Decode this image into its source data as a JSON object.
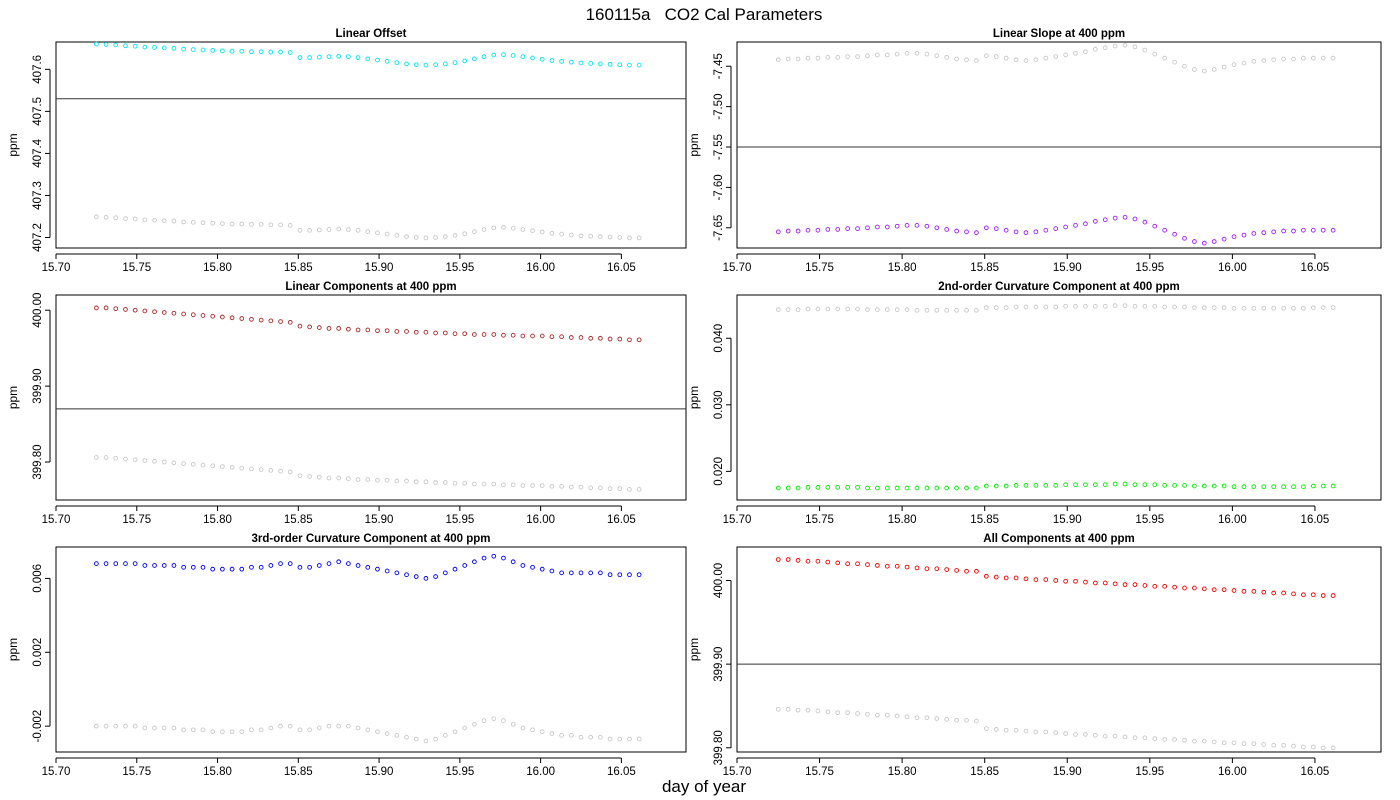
{
  "figure": {
    "title": "160115a   CO2 Cal Parameters",
    "xlabel": "day of year"
  },
  "chart_data": [
    {
      "type": "scatter",
      "title": "Linear Offset",
      "ylabel": "ppm",
      "xlim": [
        15.7,
        16.09
      ],
      "ylim": [
        407.175,
        407.665
      ],
      "xticks": [
        "15.70",
        "15.75",
        "15.80",
        "15.85",
        "15.90",
        "15.95",
        "16.00",
        "16.05"
      ],
      "yticks": [
        "407.2",
        "407.3",
        "407.4",
        "407.5",
        "407.6"
      ],
      "hline": 407.53,
      "x_start": 15.725,
      "x_step": 0.006,
      "series": [
        {
          "color": "#00e5ee",
          "values": [
            407.66,
            407.659,
            407.658,
            407.656,
            407.655,
            407.653,
            407.652,
            407.651,
            407.65,
            407.648,
            407.647,
            407.646,
            407.645,
            407.644,
            407.643,
            407.643,
            407.642,
            407.642,
            407.641,
            407.641,
            407.64,
            407.628,
            407.628,
            407.629,
            407.63,
            407.631,
            407.63,
            407.628,
            407.625,
            407.622,
            407.619,
            407.616,
            407.613,
            407.611,
            407.61,
            407.611,
            407.613,
            407.616,
            407.62,
            407.625,
            407.63,
            407.634,
            407.635,
            407.633,
            407.63,
            407.627,
            407.624,
            407.621,
            407.619,
            407.617,
            407.615,
            407.614,
            407.613,
            407.612,
            407.611,
            407.61,
            407.61
          ]
        },
        {
          "color": "#c8c8c8",
          "values": [
            407.249,
            407.248,
            407.247,
            407.245,
            407.244,
            407.242,
            407.241,
            407.24,
            407.239,
            407.237,
            407.236,
            407.235,
            407.234,
            407.233,
            407.232,
            407.232,
            407.231,
            407.231,
            407.23,
            407.23,
            407.229,
            407.217,
            407.217,
            407.218,
            407.219,
            407.22,
            407.219,
            407.217,
            407.214,
            407.211,
            407.208,
            407.205,
            407.202,
            407.2,
            407.199,
            407.2,
            407.202,
            407.205,
            407.209,
            407.214,
            407.219,
            407.223,
            407.224,
            407.222,
            407.219,
            407.216,
            407.213,
            407.21,
            407.208,
            407.206,
            407.204,
            407.203,
            407.202,
            407.201,
            407.2,
            407.199,
            407.199
          ]
        }
      ]
    },
    {
      "type": "scatter",
      "title": "Linear Slope at 400 ppm",
      "ylabel": "ppm",
      "xlim": [
        15.7,
        16.09
      ],
      "ylim": [
        -7.675,
        -7.42
      ],
      "xticks": [
        "15.70",
        "15.75",
        "15.80",
        "15.85",
        "15.90",
        "15.95",
        "16.00",
        "16.05"
      ],
      "yticks": [
        "-7.65",
        "-7.60",
        "-7.55",
        "-7.50",
        "-7.45"
      ],
      "hline": -7.55,
      "x_start": 15.725,
      "x_step": 0.006,
      "series": [
        {
          "color": "#a020f0",
          "values": [
            -7.655,
            -7.654,
            -7.654,
            -7.653,
            -7.653,
            -7.652,
            -7.652,
            -7.651,
            -7.651,
            -7.65,
            -7.649,
            -7.649,
            -7.648,
            -7.647,
            -7.647,
            -7.648,
            -7.65,
            -7.652,
            -7.654,
            -7.655,
            -7.656,
            -7.65,
            -7.651,
            -7.653,
            -7.655,
            -7.656,
            -7.655,
            -7.653,
            -7.651,
            -7.649,
            -7.647,
            -7.645,
            -7.642,
            -7.64,
            -7.638,
            -7.637,
            -7.639,
            -7.643,
            -7.648,
            -7.653,
            -7.658,
            -7.663,
            -7.667,
            -7.669,
            -7.667,
            -7.664,
            -7.661,
            -7.659,
            -7.657,
            -7.656,
            -7.655,
            -7.654,
            -7.654,
            -7.653,
            -7.653,
            -7.653,
            -7.653
          ]
        },
        {
          "color": "#c8c8c8",
          "values": [
            -7.442,
            -7.441,
            -7.441,
            -7.44,
            -7.44,
            -7.439,
            -7.439,
            -7.438,
            -7.438,
            -7.437,
            -7.436,
            -7.436,
            -7.435,
            -7.434,
            -7.434,
            -7.435,
            -7.437,
            -7.439,
            -7.441,
            -7.442,
            -7.443,
            -7.437,
            -7.438,
            -7.44,
            -7.442,
            -7.443,
            -7.442,
            -7.44,
            -7.438,
            -7.436,
            -7.434,
            -7.432,
            -7.429,
            -7.427,
            -7.425,
            -7.424,
            -7.426,
            -7.43,
            -7.435,
            -7.44,
            -7.445,
            -7.45,
            -7.454,
            -7.456,
            -7.454,
            -7.451,
            -7.448,
            -7.446,
            -7.444,
            -7.443,
            -7.442,
            -7.441,
            -7.441,
            -7.44,
            -7.44,
            -7.44,
            -7.44
          ]
        }
      ]
    },
    {
      "type": "scatter",
      "title": "Linear Components at 400 ppm",
      "ylabel": "ppm",
      "xlim": [
        15.7,
        16.09
      ],
      "ylim": [
        399.75,
        400.02
      ],
      "xticks": [
        "15.70",
        "15.75",
        "15.80",
        "15.85",
        "15.90",
        "15.95",
        "16.00",
        "16.05"
      ],
      "yticks": [
        "399.80",
        "399.90",
        "400.00"
      ],
      "hline": 399.87,
      "x_start": 15.725,
      "x_step": 0.006,
      "series": [
        {
          "color": "#a52a2a",
          "values": [
            400.003,
            400.003,
            400.002,
            400.001,
            400.0,
            399.999,
            399.998,
            399.997,
            399.996,
            399.995,
            399.994,
            399.993,
            399.992,
            399.991,
            399.99,
            399.989,
            399.988,
            399.987,
            399.986,
            399.985,
            399.984,
            399.979,
            399.978,
            399.977,
            399.976,
            399.976,
            399.975,
            399.974,
            399.974,
            399.973,
            399.973,
            399.972,
            399.972,
            399.971,
            399.971,
            399.97,
            399.97,
            399.969,
            399.969,
            399.968,
            399.968,
            399.968,
            399.967,
            399.967,
            399.966,
            399.966,
            399.966,
            399.965,
            399.965,
            399.964,
            399.964,
            399.963,
            399.963,
            399.962,
            399.962,
            399.961,
            399.961
          ]
        },
        {
          "color": "#c8c8c8",
          "values": [
            399.806,
            399.806,
            399.805,
            399.804,
            399.803,
            399.802,
            399.801,
            399.8,
            399.799,
            399.798,
            399.797,
            399.796,
            399.795,
            399.794,
            399.793,
            399.792,
            399.791,
            399.79,
            399.789,
            399.788,
            399.787,
            399.782,
            399.781,
            399.78,
            399.779,
            399.779,
            399.778,
            399.777,
            399.777,
            399.776,
            399.776,
            399.775,
            399.775,
            399.774,
            399.774,
            399.773,
            399.773,
            399.772,
            399.772,
            399.771,
            399.771,
            399.771,
            399.77,
            399.77,
            399.769,
            399.769,
            399.769,
            399.768,
            399.768,
            399.767,
            399.767,
            399.766,
            399.766,
            399.765,
            399.765,
            399.764,
            399.764
          ]
        }
      ]
    },
    {
      "type": "scatter",
      "title": "2nd-order Curvature Component at 400 ppm",
      "ylabel": "ppm",
      "xlim": [
        15.7,
        16.09
      ],
      "ylim": [
        0.0157,
        0.0465
      ],
      "xticks": [
        "15.70",
        "15.75",
        "15.80",
        "15.85",
        "15.90",
        "15.95",
        "16.00",
        "16.05"
      ],
      "yticks": [
        "0.020",
        "0.030",
        "0.040"
      ],
      "x_start": 15.725,
      "x_step": 0.006,
      "series": [
        {
          "color": "#00ee00",
          "values": [
            0.0175,
            0.0175,
            0.0175,
            0.0176,
            0.0176,
            0.0176,
            0.0176,
            0.0176,
            0.0176,
            0.0175,
            0.0175,
            0.0175,
            0.0175,
            0.0175,
            0.0175,
            0.0175,
            0.0175,
            0.0175,
            0.0175,
            0.0175,
            0.0175,
            0.0178,
            0.0178,
            0.0178,
            0.0179,
            0.0179,
            0.0179,
            0.0179,
            0.0179,
            0.018,
            0.018,
            0.018,
            0.018,
            0.018,
            0.0181,
            0.0181,
            0.018,
            0.018,
            0.018,
            0.0179,
            0.0179,
            0.0179,
            0.0178,
            0.0178,
            0.0178,
            0.0178,
            0.0177,
            0.0177,
            0.0177,
            0.0177,
            0.0177,
            0.0177,
            0.0177,
            0.0177,
            0.0178,
            0.0178,
            0.0178
          ]
        },
        {
          "color": "#c8c8c8",
          "values": [
            0.0443,
            0.0443,
            0.0443,
            0.0444,
            0.0444,
            0.0444,
            0.0444,
            0.0444,
            0.0444,
            0.0443,
            0.0443,
            0.0443,
            0.0443,
            0.0443,
            0.0442,
            0.0442,
            0.0442,
            0.0442,
            0.0442,
            0.0442,
            0.0442,
            0.0446,
            0.0446,
            0.0446,
            0.0447,
            0.0447,
            0.0447,
            0.0447,
            0.0447,
            0.0448,
            0.0448,
            0.0448,
            0.0448,
            0.0448,
            0.0449,
            0.0449,
            0.0448,
            0.0448,
            0.0448,
            0.0447,
            0.0447,
            0.0447,
            0.0446,
            0.0446,
            0.0446,
            0.0446,
            0.0445,
            0.0445,
            0.0445,
            0.0445,
            0.0445,
            0.0445,
            0.0445,
            0.0445,
            0.0446,
            0.0446,
            0.0446
          ]
        }
      ]
    },
    {
      "type": "scatter",
      "title": "3rd-order Curvature Component at 400 ppm",
      "ylabel": "ppm",
      "xlim": [
        15.7,
        16.09
      ],
      "ylim": [
        -0.0034,
        0.0077
      ],
      "xticks": [
        "15.70",
        "15.75",
        "15.80",
        "15.85",
        "15.90",
        "15.95",
        "16.00",
        "16.05"
      ],
      "yticks": [
        "-0.002",
        "0.002",
        "0.006"
      ],
      "x_start": 15.725,
      "x_step": 0.006,
      "series": [
        {
          "color": "#0000ee",
          "values": [
            0.0068,
            0.0068,
            0.0068,
            0.0068,
            0.0068,
            0.0067,
            0.0067,
            0.0067,
            0.0067,
            0.0066,
            0.0066,
            0.0066,
            0.0065,
            0.0065,
            0.0065,
            0.0065,
            0.0066,
            0.0066,
            0.0067,
            0.0068,
            0.0068,
            0.0066,
            0.0066,
            0.0067,
            0.0068,
            0.0069,
            0.0068,
            0.0067,
            0.0066,
            0.0065,
            0.0064,
            0.0063,
            0.0062,
            0.0061,
            0.006,
            0.0061,
            0.0063,
            0.0065,
            0.0067,
            0.0069,
            0.0071,
            0.0072,
            0.0071,
            0.0069,
            0.0067,
            0.0066,
            0.0065,
            0.0064,
            0.0063,
            0.0063,
            0.0063,
            0.0063,
            0.0063,
            0.0062,
            0.0062,
            0.0062,
            0.0062
          ]
        },
        {
          "color": "#c8c8c8",
          "values": [
            -0.002,
            -0.002,
            -0.002,
            -0.002,
            -0.002,
            -0.0021,
            -0.0021,
            -0.0021,
            -0.0021,
            -0.0022,
            -0.0022,
            -0.0022,
            -0.0023,
            -0.0023,
            -0.0023,
            -0.0023,
            -0.0022,
            -0.0022,
            -0.0021,
            -0.002,
            -0.002,
            -0.0022,
            -0.0022,
            -0.0021,
            -0.002,
            -0.002,
            -0.002,
            -0.0021,
            -0.0022,
            -0.0023,
            -0.0024,
            -0.0025,
            -0.0026,
            -0.0027,
            -0.0028,
            -0.0027,
            -0.0025,
            -0.0023,
            -0.0021,
            -0.0019,
            -0.0017,
            -0.0016,
            -0.0017,
            -0.0019,
            -0.0021,
            -0.0022,
            -0.0023,
            -0.0024,
            -0.0025,
            -0.0025,
            -0.0026,
            -0.0026,
            -0.0026,
            -0.0027,
            -0.0027,
            -0.0027,
            -0.0027
          ]
        }
      ]
    },
    {
      "type": "scatter",
      "title": "All Components at 400 ppm",
      "ylabel": "ppm",
      "xlim": [
        15.7,
        16.09
      ],
      "ylim": [
        399.795,
        400.04
      ],
      "xticks": [
        "15.70",
        "15.75",
        "15.80",
        "15.85",
        "15.90",
        "15.95",
        "16.00",
        "16.05"
      ],
      "yticks": [
        "399.80",
        "399.90",
        "400.00"
      ],
      "hline": 399.9,
      "x_start": 15.725,
      "x_step": 0.006,
      "series": [
        {
          "color": "#ee0000",
          "values": [
            400.025,
            400.025,
            400.024,
            400.023,
            400.023,
            400.022,
            400.021,
            400.02,
            400.02,
            400.019,
            400.018,
            400.017,
            400.017,
            400.016,
            400.015,
            400.014,
            400.014,
            400.013,
            400.012,
            400.011,
            400.011,
            400.005,
            400.004,
            400.003,
            400.003,
            400.002,
            400.001,
            400.001,
            400.0,
            399.999,
            399.999,
            399.998,
            399.997,
            399.997,
            399.996,
            399.995,
            399.995,
            399.994,
            399.993,
            399.993,
            399.992,
            399.991,
            399.991,
            399.99,
            399.989,
            399.989,
            399.988,
            399.987,
            399.987,
            399.986,
            399.985,
            399.985,
            399.984,
            399.983,
            399.983,
            399.982,
            399.982
          ]
        },
        {
          "color": "#c8c8c8",
          "values": [
            399.846,
            399.846,
            399.845,
            399.845,
            399.844,
            399.843,
            399.842,
            399.842,
            399.841,
            399.84,
            399.839,
            399.839,
            399.838,
            399.837,
            399.836,
            399.836,
            399.835,
            399.834,
            399.833,
            399.833,
            399.832,
            399.823,
            399.822,
            399.821,
            399.821,
            399.82,
            399.819,
            399.819,
            399.818,
            399.817,
            399.816,
            399.816,
            399.815,
            399.814,
            399.814,
            399.813,
            399.812,
            399.812,
            399.811,
            399.81,
            399.81,
            399.809,
            399.808,
            399.808,
            399.807,
            399.806,
            399.806,
            399.805,
            399.805,
            399.804,
            399.803,
            399.803,
            399.802,
            399.801,
            399.801,
            399.8,
            399.8
          ]
        }
      ]
    }
  ]
}
